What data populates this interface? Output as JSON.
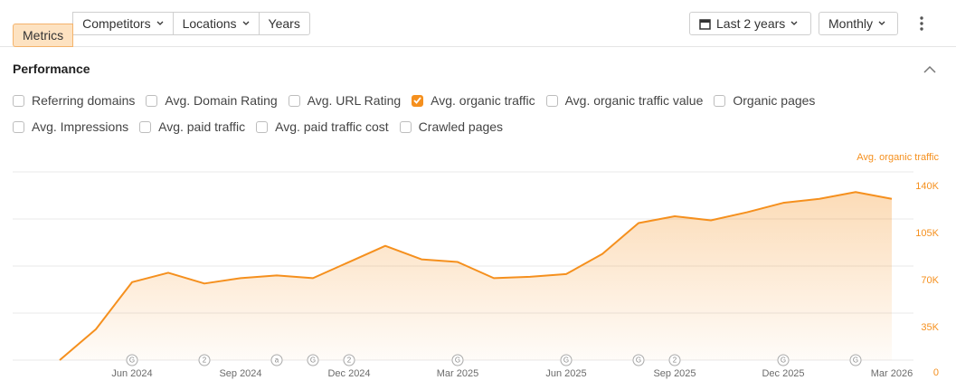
{
  "toolbar": {
    "tabs": [
      {
        "label": "Metrics",
        "active": true,
        "dropdown": false
      },
      {
        "label": "Competitors",
        "active": false,
        "dropdown": true
      },
      {
        "label": "Locations",
        "active": false,
        "dropdown": true
      },
      {
        "label": "Years",
        "active": false,
        "dropdown": false
      }
    ],
    "period": "Last 2 years",
    "interval": "Monthly"
  },
  "panel": {
    "title": "Performance",
    "metrics": [
      [
        {
          "label": "Referring domains",
          "checked": false
        },
        {
          "label": "Avg. Domain Rating",
          "checked": false
        },
        {
          "label": "Avg. URL Rating",
          "checked": false
        },
        {
          "label": "Avg. organic traffic",
          "checked": true
        },
        {
          "label": "Avg. organic traffic value",
          "checked": false
        },
        {
          "label": "Organic pages",
          "checked": false
        }
      ],
      [
        {
          "label": "Avg. Impressions",
          "checked": false
        },
        {
          "label": "Avg. paid traffic",
          "checked": false
        },
        {
          "label": "Avg. paid traffic cost",
          "checked": false
        },
        {
          "label": "Crawled pages",
          "checked": false
        }
      ]
    ]
  },
  "chart_data": {
    "type": "area",
    "ylabel": "Avg. organic traffic",
    "color": "#f5901e",
    "categories": [
      null,
      null,
      "Jun 2024",
      null,
      null,
      "Sep 2024",
      null,
      null,
      "Dec 2024",
      null,
      null,
      "Mar 2025",
      null,
      null,
      "Jun 2025",
      null,
      null,
      "Sep 2025",
      null,
      null,
      "Dec 2025",
      null,
      null,
      "Mar 2026"
    ],
    "values": [
      0,
      23000,
      58000,
      65000,
      57000,
      61000,
      63000,
      61000,
      73000,
      85000,
      75000,
      73000,
      61000,
      62000,
      64000,
      79000,
      102000,
      107000,
      104000,
      110000,
      117000,
      120000,
      125000,
      120000
    ],
    "annotations": [
      null,
      null,
      "G",
      null,
      "2",
      null,
      "a",
      "G",
      "2",
      null,
      null,
      "G",
      null,
      null,
      "G",
      null,
      "G",
      "2",
      null,
      null,
      "G",
      null,
      "G",
      null
    ],
    "ylim": [
      0,
      140000
    ],
    "yticks": [
      0,
      {
        "value": 35000,
        "label": "35K"
      },
      {
        "value": 70000,
        "label": "70K"
      },
      {
        "value": 105000,
        "label": "105K"
      },
      {
        "value": 140000,
        "label": "140K"
      }
    ],
    "grid": true
  }
}
